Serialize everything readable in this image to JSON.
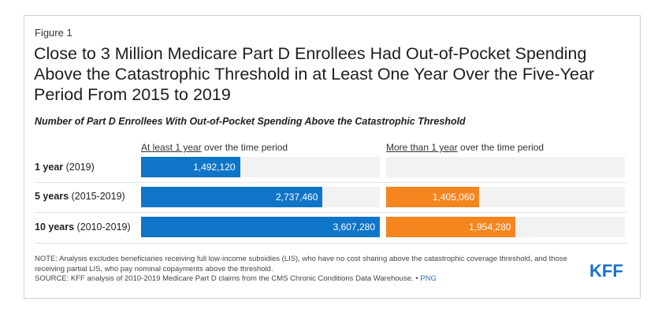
{
  "figure_label": "Figure 1",
  "title": "Close to 3 Million Medicare Part D Enrollees Had Out-of-Pocket Spending Above the Catastrophic Threshold in at Least One Year Over the Five-Year Period From 2015 to 2019",
  "subtitle": "Number of Part D Enrollees With Out-of-Pocket Spending Above the Catastrophic Threshold",
  "headers": {
    "left_underlined": "At least 1 year",
    "left_rest": " over the time period",
    "right_underlined": "More than 1 year",
    "right_rest": " over the time period"
  },
  "rows": [
    {
      "bold": "1 year",
      "rest": " (2019)"
    },
    {
      "bold": "5 years",
      "rest": " (2015-2019)"
    },
    {
      "bold": "10 years",
      "rest": " (2010-2019)"
    }
  ],
  "colors": {
    "blue": "#0f75c9",
    "orange": "#f4851f",
    "track": "#f2f2f2"
  },
  "chart_data": {
    "type": "bar",
    "orientation": "horizontal",
    "categories": [
      "1 year (2019)",
      "5 years (2015-2019)",
      "10 years (2010-2019)"
    ],
    "series": [
      {
        "name": "At least 1 year over the time period",
        "values": [
          1492120,
          2737460,
          3607280
        ],
        "labels": [
          "1,492,120",
          "2,737,460",
          "3,607,280"
        ]
      },
      {
        "name": "More than 1 year over the time period",
        "values": [
          null,
          1405060,
          1954280
        ],
        "labels": [
          "",
          "1,405,060",
          "1,954,280"
        ]
      }
    ],
    "xlim": [
      0,
      3600000
    ],
    "title": "Number of Part D Enrollees With Out-of-Pocket Spending Above the Catastrophic Threshold"
  },
  "note": "NOTE: Analysis excludes beneficiaries receiving full low-income subsidies (LIS), who have no cost sharing above the catastrophic coverage threshold, and those receiving partial LIS, who pay nominal copayments above the threshold.",
  "source": "SOURCE: KFF analysis of 2010-2019 Medicare Part D claims from the CMS Chronic Conditions Data Warehouse. •",
  "png_link": "PNG",
  "logo": "KFF"
}
